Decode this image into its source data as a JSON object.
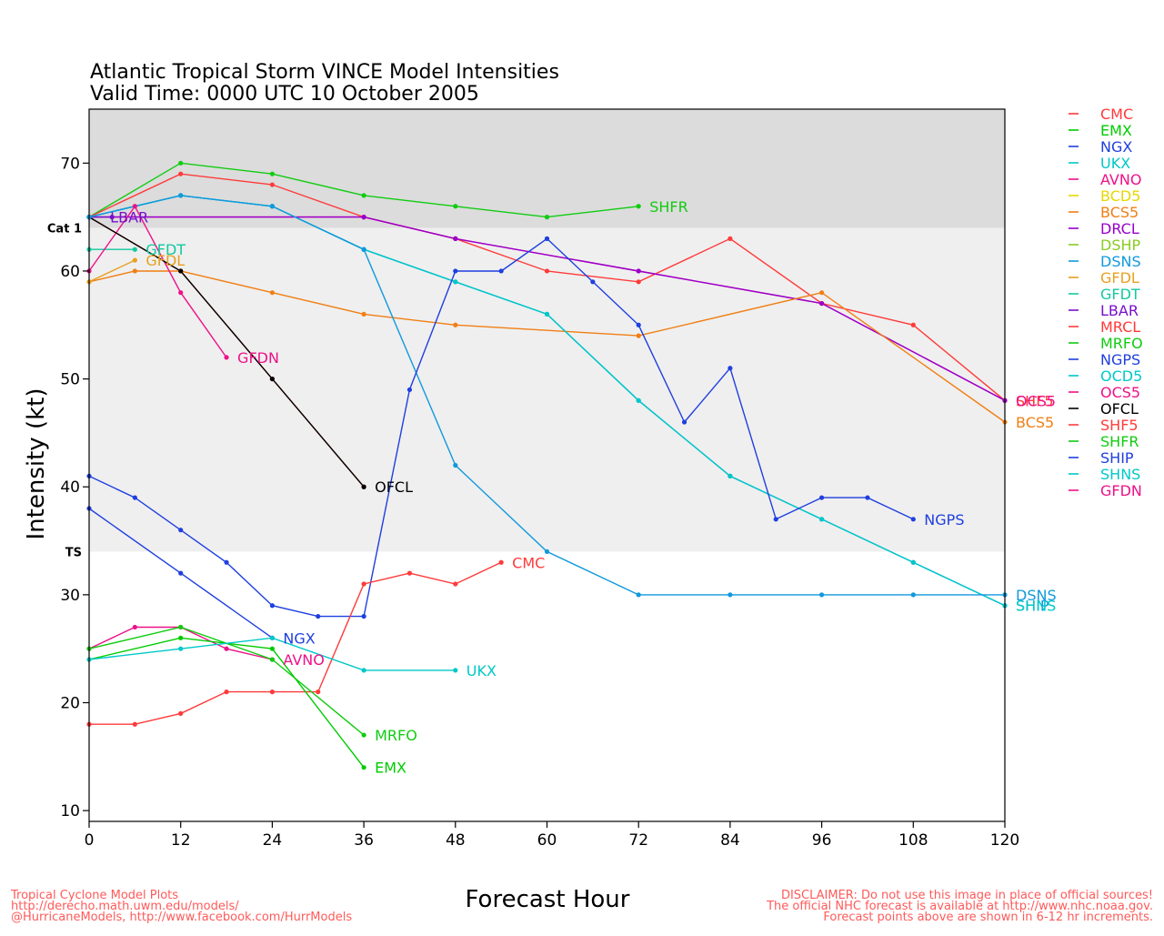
{
  "colors": {
    "background": "#ffffff",
    "hurricane_band": "#dcdcdc",
    "storm_band": "#efefef",
    "axis": "#000000",
    "footer": "#ff5a5a"
  },
  "chart_data": {
    "type": "line",
    "title": "Atlantic Tropical Storm VINCE Model Intensities",
    "subtitle": "Valid Time: 0000 UTC 10 October 2005",
    "xlabel": "Forecast Hour",
    "ylabel": "Intensity (kt)",
    "xlim": [
      0,
      120
    ],
    "ylim": [
      9,
      75
    ],
    "x_ticks": [
      0,
      12,
      24,
      36,
      48,
      60,
      72,
      84,
      96,
      108,
      120
    ],
    "y_ticks": [
      10,
      20,
      30,
      40,
      50,
      60,
      70
    ],
    "bands": [
      {
        "label": "Cat 1",
        "from": 64,
        "to": 75,
        "color": "#dcdcdc"
      },
      {
        "label": "TS",
        "from": 34,
        "to": 64,
        "color": "#efefef"
      }
    ],
    "legend_position": "right",
    "legend": [
      {
        "name": "CMC",
        "color": "#ff3a3a"
      },
      {
        "name": "EMX",
        "color": "#00cc00"
      },
      {
        "name": "NGX",
        "color": "#1f3fdf"
      },
      {
        "name": "UKX",
        "color": "#00c8c8"
      },
      {
        "name": "AVNO",
        "color": "#ee1188"
      },
      {
        "name": "BCD5",
        "color": "#e6d800"
      },
      {
        "name": "BCS5",
        "color": "#f07f14"
      },
      {
        "name": "DRCL",
        "color": "#9900cc"
      },
      {
        "name": "DSHP",
        "color": "#88cc22"
      },
      {
        "name": "DSNS",
        "color": "#1199dd"
      },
      {
        "name": "GFDL",
        "color": "#e8a020"
      },
      {
        "name": "GFDT",
        "color": "#14c8a0"
      },
      {
        "name": "LBAR",
        "color": "#7711cc"
      },
      {
        "name": "MRCL",
        "color": "#ff3a3a"
      },
      {
        "name": "MRFO",
        "color": "#11cc11"
      },
      {
        "name": "NGPS",
        "color": "#1f3fdf"
      },
      {
        "name": "OCD5",
        "color": "#00c8c8"
      },
      {
        "name": "OCS5",
        "color": "#ee1188"
      },
      {
        "name": "OFCL",
        "color": "#000000"
      },
      {
        "name": "SHF5",
        "color": "#ff3a3a"
      },
      {
        "name": "SHFR",
        "color": "#11cc11"
      },
      {
        "name": "SHIP",
        "color": "#1f3fdf"
      },
      {
        "name": "SHNS",
        "color": "#00c8c8"
      },
      {
        "name": "GFDN",
        "color": "#ee1188"
      }
    ],
    "series": [
      {
        "name": "SHFR",
        "color": "#11cc11",
        "label": "SHFR",
        "points": [
          [
            0,
            65
          ],
          [
            12,
            70
          ],
          [
            24,
            69
          ],
          [
            36,
            67
          ],
          [
            48,
            66
          ],
          [
            60,
            65
          ],
          [
            72,
            66
          ]
        ]
      },
      {
        "name": "SHF5",
        "color": "#ff3a3a",
        "label": "SHF5",
        "points": [
          [
            0,
            65
          ],
          [
            12,
            69
          ],
          [
            24,
            68
          ],
          [
            36,
            65
          ],
          [
            48,
            63
          ],
          [
            60,
            60
          ],
          [
            72,
            59
          ],
          [
            84,
            63
          ],
          [
            96,
            57
          ],
          [
            108,
            55
          ],
          [
            120,
            48
          ]
        ]
      },
      {
        "name": "OCS5",
        "color": "#ee1188",
        "label": "OCS5",
        "points": [
          [
            0,
            65
          ],
          [
            36,
            65
          ],
          [
            48,
            63
          ],
          [
            72,
            60
          ],
          [
            96,
            57
          ],
          [
            120,
            48
          ]
        ]
      },
      {
        "name": "DRCL",
        "color": "#9900cc",
        "label": "",
        "points": [
          [
            0,
            65
          ],
          [
            36,
            65
          ],
          [
            48,
            63
          ],
          [
            72,
            60
          ],
          [
            96,
            57
          ],
          [
            120,
            48
          ]
        ]
      },
      {
        "name": "BCS5",
        "color": "#f07f14",
        "label": "BCS5",
        "points": [
          [
            0,
            59
          ],
          [
            6,
            60
          ],
          [
            12,
            60
          ],
          [
            24,
            58
          ],
          [
            36,
            56
          ],
          [
            48,
            55
          ],
          [
            72,
            54
          ],
          [
            96,
            58
          ],
          [
            120,
            46
          ]
        ]
      },
      {
        "name": "GFDL",
        "color": "#e8a020",
        "label": "GFDL",
        "points": [
          [
            0,
            59
          ],
          [
            6,
            61
          ]
        ]
      },
      {
        "name": "GFDT",
        "color": "#14c8a0",
        "label": "GFDT",
        "points": [
          [
            0,
            62
          ],
          [
            6,
            62
          ]
        ]
      },
      {
        "name": "GFDN",
        "color": "#ee1188",
        "label": "GFDN",
        "points": [
          [
            0,
            60
          ],
          [
            6,
            66
          ],
          [
            12,
            58
          ],
          [
            18,
            52
          ]
        ]
      },
      {
        "name": "LBAR",
        "color": "#7711cc",
        "label": "LBAR",
        "points": [
          [
            0,
            65
          ],
          [
            3,
            65
          ]
        ]
      },
      {
        "name": "MRCL",
        "color": "#ff3a3a",
        "label": "",
        "points": [
          [
            0,
            65
          ],
          [
            12,
            60
          ],
          [
            24,
            50
          ],
          [
            36,
            40
          ]
        ]
      },
      {
        "name": "OFCL",
        "color": "#000000",
        "label": "OFCL",
        "points": [
          [
            0,
            65
          ],
          [
            12,
            60
          ],
          [
            24,
            50
          ],
          [
            36,
            40
          ]
        ]
      },
      {
        "name": "SHIP",
        "color": "#1199dd",
        "label": "SHIP",
        "points": [
          [
            0,
            65
          ],
          [
            12,
            67
          ],
          [
            24,
            66
          ],
          [
            36,
            62
          ],
          [
            48,
            59
          ],
          [
            60,
            56
          ],
          [
            72,
            48
          ],
          [
            84,
            41
          ],
          [
            96,
            37
          ],
          [
            108,
            33
          ],
          [
            120,
            29
          ]
        ]
      },
      {
        "name": "SHNS",
        "color": "#00c8c8",
        "label": "SHNS",
        "points": [
          [
            0,
            65
          ],
          [
            12,
            67
          ],
          [
            24,
            66
          ],
          [
            36,
            62
          ],
          [
            48,
            59
          ],
          [
            60,
            56
          ],
          [
            72,
            48
          ],
          [
            84,
            41
          ],
          [
            96,
            37
          ],
          [
            108,
            33
          ],
          [
            120,
            29
          ]
        ]
      },
      {
        "name": "DSNS",
        "color": "#1199dd",
        "label": "DSNS",
        "points": [
          [
            0,
            65
          ],
          [
            12,
            67
          ],
          [
            24,
            66
          ],
          [
            36,
            62
          ],
          [
            48,
            42
          ],
          [
            60,
            34
          ],
          [
            72,
            30
          ],
          [
            84,
            30
          ],
          [
            96,
            30
          ],
          [
            108,
            30
          ],
          [
            120,
            30
          ]
        ]
      },
      {
        "name": "NGPS",
        "color": "#1f3fdf",
        "label": "NGPS",
        "points": [
          [
            0,
            41
          ],
          [
            6,
            39
          ],
          [
            12,
            36
          ],
          [
            18,
            33
          ],
          [
            24,
            29
          ],
          [
            30,
            28
          ],
          [
            36,
            28
          ],
          [
            42,
            49
          ],
          [
            48,
            60
          ],
          [
            54,
            60
          ],
          [
            60,
            63
          ],
          [
            66,
            59
          ],
          [
            72,
            55
          ],
          [
            78,
            46
          ],
          [
            84,
            51
          ],
          [
            90,
            37
          ],
          [
            96,
            39
          ],
          [
            102,
            39
          ],
          [
            108,
            37
          ]
        ]
      },
      {
        "name": "NGX",
        "color": "#1f3fdf",
        "label": "NGX",
        "points": [
          [
            0,
            38
          ],
          [
            12,
            32
          ],
          [
            24,
            26
          ]
        ]
      },
      {
        "name": "CMC",
        "color": "#ff3a3a",
        "label": "CMC",
        "points": [
          [
            0,
            18
          ],
          [
            6,
            18
          ],
          [
            12,
            19
          ],
          [
            18,
            21
          ],
          [
            24,
            21
          ],
          [
            30,
            21
          ],
          [
            36,
            31
          ],
          [
            42,
            32
          ],
          [
            48,
            31
          ],
          [
            54,
            33
          ]
        ]
      },
      {
        "name": "AVNO",
        "color": "#ee1188",
        "label": "AVNO",
        "points": [
          [
            0,
            25
          ],
          [
            6,
            27
          ],
          [
            12,
            27
          ],
          [
            18,
            25
          ],
          [
            24,
            24
          ]
        ]
      },
      {
        "name": "MRFO",
        "color": "#11cc11",
        "label": "MRFO",
        "points": [
          [
            0,
            25
          ],
          [
            12,
            27
          ],
          [
            24,
            24
          ],
          [
            36,
            17
          ]
        ]
      },
      {
        "name": "EMX",
        "color": "#00cc00",
        "label": "EMX",
        "points": [
          [
            0,
            24
          ],
          [
            12,
            26
          ],
          [
            24,
            25
          ],
          [
            36,
            14
          ]
        ]
      },
      {
        "name": "UKX",
        "color": "#00c8c8",
        "label": "UKX",
        "points": [
          [
            0,
            24
          ],
          [
            12,
            25
          ],
          [
            24,
            26
          ],
          [
            36,
            23
          ],
          [
            48,
            23
          ]
        ]
      }
    ]
  },
  "footer": {
    "left": [
      "Tropical Cyclone Model Plots",
      "http://derecho.math.uwm.edu/models/",
      "@HurricaneModels, http://www.facebook.com/HurrModels"
    ],
    "right": [
      "DISCLAIMER: Do not use this image in place of official sources!",
      "The official NHC forecast is available at http://www.nhc.noaa.gov.",
      "Forecast points above are shown in 6-12 hr increments."
    ]
  }
}
